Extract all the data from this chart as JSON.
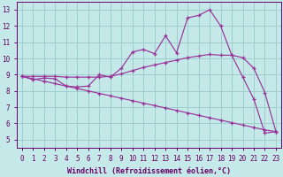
{
  "xlabel": "Windchill (Refroidissement éolien,°C)",
  "xlim": [
    -0.5,
    23.5
  ],
  "ylim": [
    4.5,
    13.5
  ],
  "xticks": [
    0,
    1,
    2,
    3,
    4,
    5,
    6,
    7,
    8,
    9,
    10,
    11,
    12,
    13,
    14,
    15,
    16,
    17,
    18,
    19,
    20,
    21,
    22,
    23
  ],
  "yticks": [
    5,
    6,
    7,
    8,
    9,
    10,
    11,
    12,
    13
  ],
  "bg_color": "#c5e8e8",
  "grid_color": "#9ecece",
  "line_color": "#993399",
  "line1_y": [
    8.9,
    8.7,
    8.8,
    8.75,
    8.3,
    8.25,
    8.3,
    9.0,
    8.85,
    9.4,
    10.4,
    10.55,
    10.3,
    11.4,
    10.35,
    12.5,
    12.65,
    13.0,
    12.0,
    10.2,
    8.85,
    7.5,
    5.4,
    5.5
  ],
  "line2_y": [
    8.9,
    8.9,
    8.9,
    8.9,
    8.85,
    8.85,
    8.85,
    8.85,
    8.9,
    9.05,
    9.25,
    9.45,
    9.6,
    9.75,
    9.9,
    10.05,
    10.15,
    10.25,
    10.2,
    10.2,
    10.05,
    9.4,
    7.9,
    5.5
  ],
  "line3_y": [
    8.9,
    8.75,
    8.6,
    8.45,
    8.3,
    8.15,
    8.0,
    7.85,
    7.7,
    7.55,
    7.4,
    7.25,
    7.1,
    6.95,
    6.8,
    6.65,
    6.5,
    6.35,
    6.2,
    6.05,
    5.9,
    5.75,
    5.6,
    5.5
  ]
}
